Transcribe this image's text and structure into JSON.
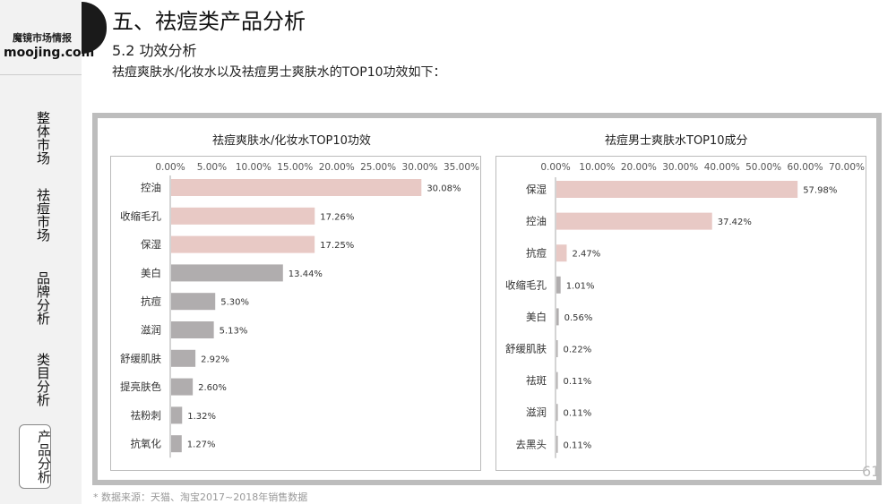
{
  "logo": {
    "cn": "魔镜市场情报",
    "en": "moojing.com"
  },
  "nav": [
    "整体市场",
    "祛痘市场",
    "品牌分析",
    "类目分析",
    "产品分析"
  ],
  "header": {
    "title": "五、祛痘类产品分析",
    "subtitle": "5.2 功效分析",
    "description": "祛痘爽肤水/化妆水以及祛痘男士爽肤水的TOP10功效如下："
  },
  "page_number": "61",
  "source": "* 数据来源：天猫、淘宝2017~2018年销售数据",
  "colors": {
    "pink_bar": "#e8c9c5",
    "grey_bar": "#b0adae",
    "panel_border": "#bdbdbd"
  },
  "chart_data": [
    {
      "type": "bar",
      "orientation": "horizontal",
      "title": "祛痘爽肤水/化妆水TOP10功效",
      "xlim": [
        0,
        35
      ],
      "x_ticks": [
        "0.00%",
        "5.00%",
        "10.00%",
        "15.00%",
        "20.00%",
        "25.00%",
        "30.00%",
        "35.00%"
      ],
      "categories": [
        "控油",
        "收缩毛孔",
        "保湿",
        "美白",
        "抗痘",
        "滋润",
        "舒缓肌肤",
        "提亮肤色",
        "祛粉刺",
        "抗氧化"
      ],
      "values": [
        30.08,
        17.26,
        17.25,
        13.44,
        5.3,
        5.13,
        2.92,
        2.6,
        1.32,
        1.27
      ],
      "value_labels": [
        "30.08%",
        "17.26%",
        "17.25%",
        "13.44%",
        "5.30%",
        "5.13%",
        "2.92%",
        "2.60%",
        "1.32%",
        "1.27%"
      ],
      "highlight_count": 3,
      "grid": false
    },
    {
      "type": "bar",
      "orientation": "horizontal",
      "title": "祛痘男士爽肤水TOP10成分",
      "xlim": [
        0,
        70
      ],
      "x_ticks": [
        "0.00%",
        "10.00%",
        "20.00%",
        "30.00%",
        "40.00%",
        "50.00%",
        "60.00%",
        "70.00%"
      ],
      "categories": [
        "保湿",
        "控油",
        "抗痘",
        "收缩毛孔",
        "美白",
        "舒缓肌肤",
        "祛斑",
        "滋润",
        "去黑头"
      ],
      "values": [
        57.98,
        37.42,
        2.47,
        1.01,
        0.56,
        0.22,
        0.11,
        0.11,
        0.11
      ],
      "value_labels": [
        "57.98%",
        "37.42%",
        "2.47%",
        "1.01%",
        "0.56%",
        "0.22%",
        "0.11%",
        "0.11%",
        "0.11%"
      ],
      "highlight_count": 3,
      "grid": false
    }
  ]
}
